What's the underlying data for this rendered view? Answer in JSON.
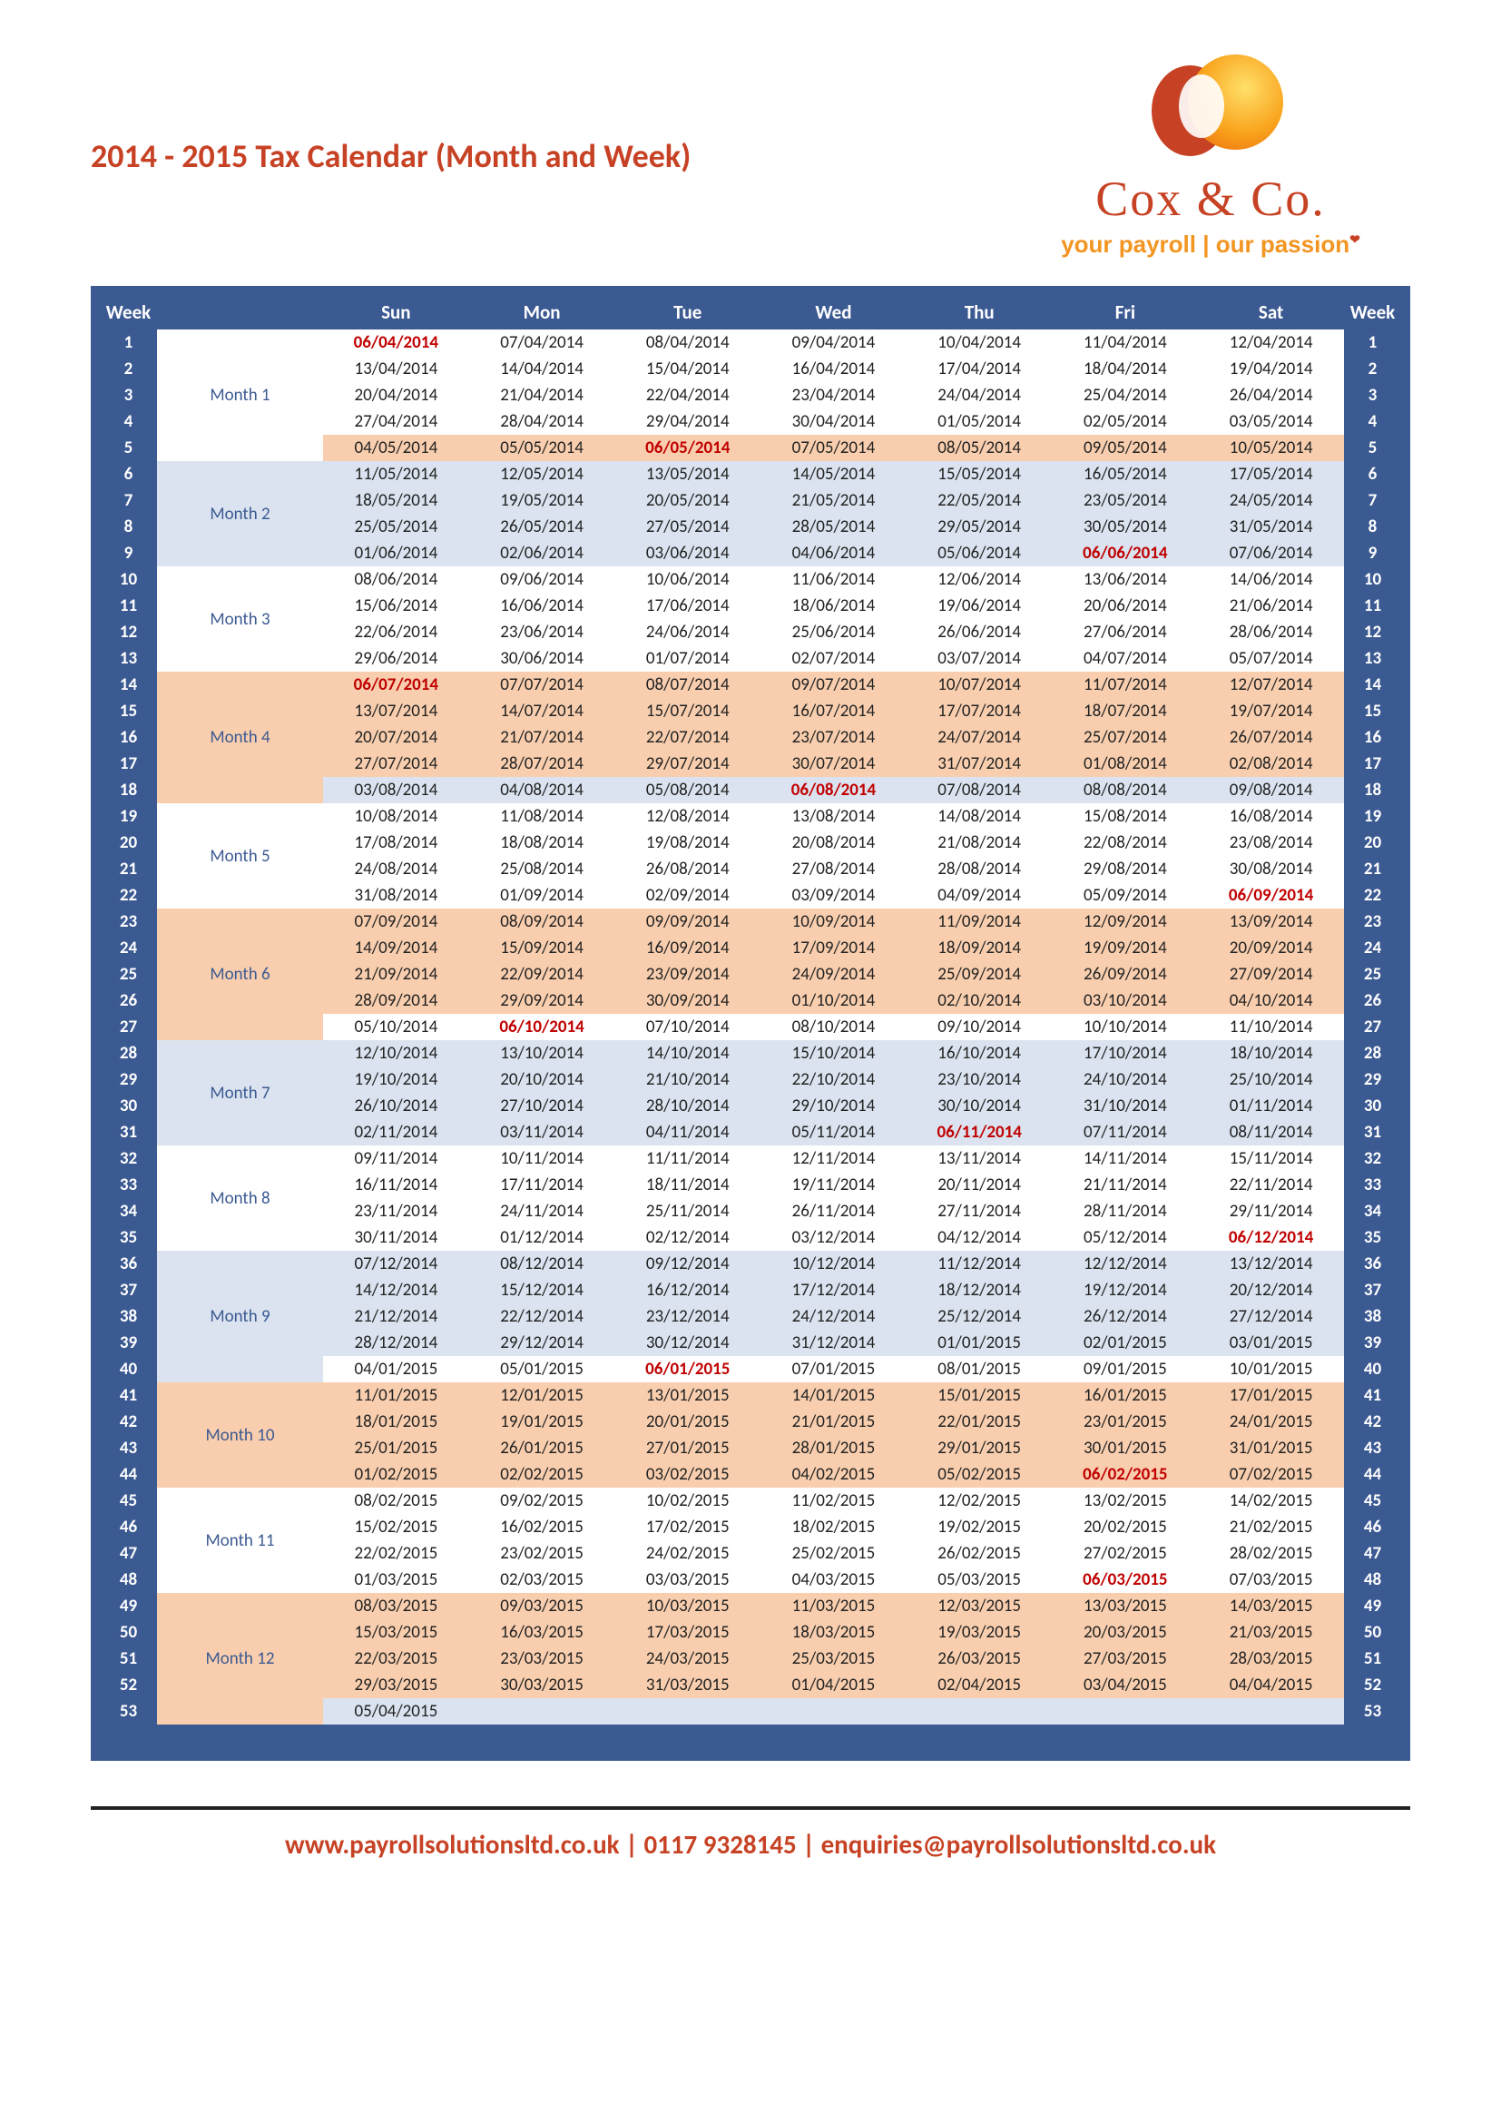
{
  "title": "2014 - 2015 Tax Calendar (Month and Week)",
  "brand": {
    "name": "Cox & Co.",
    "tagline": "your payroll | our passion"
  },
  "footer": "www.payrollsolutionsltd.co.uk | 0117 9328145 | enquiries@payrollsolutionsltd.co.uk",
  "headers": {
    "week": "Week",
    "sun": "Sun",
    "mon": "Mon",
    "tue": "Tue",
    "wed": "Wed",
    "thu": "Thu",
    "fri": "Fri",
    "sat": "Sat"
  },
  "months": [
    {
      "label": "Month 1",
      "band": "white",
      "weeks": [
        {
          "n": 1,
          "d": [
            "06/04/2014",
            "07/04/2014",
            "08/04/2014",
            "09/04/2014",
            "10/04/2014",
            "11/04/2014",
            "12/04/2014"
          ],
          "red": [
            0
          ]
        },
        {
          "n": 2,
          "d": [
            "13/04/2014",
            "14/04/2014",
            "15/04/2014",
            "16/04/2014",
            "17/04/2014",
            "18/04/2014",
            "19/04/2014"
          ]
        },
        {
          "n": 3,
          "d": [
            "20/04/2014",
            "21/04/2014",
            "22/04/2014",
            "23/04/2014",
            "24/04/2014",
            "25/04/2014",
            "26/04/2014"
          ]
        },
        {
          "n": 4,
          "d": [
            "27/04/2014",
            "28/04/2014",
            "29/04/2014",
            "30/04/2014",
            "01/05/2014",
            "02/05/2014",
            "03/05/2014"
          ]
        },
        {
          "n": 5,
          "d": [
            "04/05/2014",
            "05/05/2014",
            "06/05/2014",
            "07/05/2014",
            "08/05/2014",
            "09/05/2014",
            "10/05/2014"
          ],
          "red": [
            2
          ],
          "band": "peach"
        }
      ]
    },
    {
      "label": "Month 2",
      "band": "blue",
      "weeks": [
        {
          "n": 6,
          "d": [
            "11/05/2014",
            "12/05/2014",
            "13/05/2014",
            "14/05/2014",
            "15/05/2014",
            "16/05/2014",
            "17/05/2014"
          ]
        },
        {
          "n": 7,
          "d": [
            "18/05/2014",
            "19/05/2014",
            "20/05/2014",
            "21/05/2014",
            "22/05/2014",
            "23/05/2014",
            "24/05/2014"
          ]
        },
        {
          "n": 8,
          "d": [
            "25/05/2014",
            "26/05/2014",
            "27/05/2014",
            "28/05/2014",
            "29/05/2014",
            "30/05/2014",
            "31/05/2014"
          ]
        },
        {
          "n": 9,
          "d": [
            "01/06/2014",
            "02/06/2014",
            "03/06/2014",
            "04/06/2014",
            "05/06/2014",
            "06/06/2014",
            "07/06/2014"
          ],
          "red": [
            5
          ]
        }
      ]
    },
    {
      "label": "Month 3",
      "band": "white",
      "weeks": [
        {
          "n": 10,
          "d": [
            "08/06/2014",
            "09/06/2014",
            "10/06/2014",
            "11/06/2014",
            "12/06/2014",
            "13/06/2014",
            "14/06/2014"
          ]
        },
        {
          "n": 11,
          "d": [
            "15/06/2014",
            "16/06/2014",
            "17/06/2014",
            "18/06/2014",
            "19/06/2014",
            "20/06/2014",
            "21/06/2014"
          ]
        },
        {
          "n": 12,
          "d": [
            "22/06/2014",
            "23/06/2014",
            "24/06/2014",
            "25/06/2014",
            "26/06/2014",
            "27/06/2014",
            "28/06/2014"
          ]
        },
        {
          "n": 13,
          "d": [
            "29/06/2014",
            "30/06/2014",
            "01/07/2014",
            "02/07/2014",
            "03/07/2014",
            "04/07/2014",
            "05/07/2014"
          ]
        }
      ]
    },
    {
      "label": "Month 4",
      "band": "peach",
      "weeks": [
        {
          "n": 14,
          "d": [
            "06/07/2014",
            "07/07/2014",
            "08/07/2014",
            "09/07/2014",
            "10/07/2014",
            "11/07/2014",
            "12/07/2014"
          ],
          "red": [
            0
          ]
        },
        {
          "n": 15,
          "d": [
            "13/07/2014",
            "14/07/2014",
            "15/07/2014",
            "16/07/2014",
            "17/07/2014",
            "18/07/2014",
            "19/07/2014"
          ]
        },
        {
          "n": 16,
          "d": [
            "20/07/2014",
            "21/07/2014",
            "22/07/2014",
            "23/07/2014",
            "24/07/2014",
            "25/07/2014",
            "26/07/2014"
          ]
        },
        {
          "n": 17,
          "d": [
            "27/07/2014",
            "28/07/2014",
            "29/07/2014",
            "30/07/2014",
            "31/07/2014",
            "01/08/2014",
            "02/08/2014"
          ]
        },
        {
          "n": 18,
          "d": [
            "03/08/2014",
            "04/08/2014",
            "05/08/2014",
            "06/08/2014",
            "07/08/2014",
            "08/08/2014",
            "09/08/2014"
          ],
          "red": [
            3
          ],
          "band": "blue"
        }
      ]
    },
    {
      "label": "Month 5",
      "band": "white",
      "weeks": [
        {
          "n": 19,
          "d": [
            "10/08/2014",
            "11/08/2014",
            "12/08/2014",
            "13/08/2014",
            "14/08/2014",
            "15/08/2014",
            "16/08/2014"
          ]
        },
        {
          "n": 20,
          "d": [
            "17/08/2014",
            "18/08/2014",
            "19/08/2014",
            "20/08/2014",
            "21/08/2014",
            "22/08/2014",
            "23/08/2014"
          ]
        },
        {
          "n": 21,
          "d": [
            "24/08/2014",
            "25/08/2014",
            "26/08/2014",
            "27/08/2014",
            "28/08/2014",
            "29/08/2014",
            "30/08/2014"
          ]
        },
        {
          "n": 22,
          "d": [
            "31/08/2014",
            "01/09/2014",
            "02/09/2014",
            "03/09/2014",
            "04/09/2014",
            "05/09/2014",
            "06/09/2014"
          ],
          "red": [
            6
          ]
        }
      ]
    },
    {
      "label": "Month 6",
      "band": "peach",
      "weeks": [
        {
          "n": 23,
          "d": [
            "07/09/2014",
            "08/09/2014",
            "09/09/2014",
            "10/09/2014",
            "11/09/2014",
            "12/09/2014",
            "13/09/2014"
          ]
        },
        {
          "n": 24,
          "d": [
            "14/09/2014",
            "15/09/2014",
            "16/09/2014",
            "17/09/2014",
            "18/09/2014",
            "19/09/2014",
            "20/09/2014"
          ]
        },
        {
          "n": 25,
          "d": [
            "21/09/2014",
            "22/09/2014",
            "23/09/2014",
            "24/09/2014",
            "25/09/2014",
            "26/09/2014",
            "27/09/2014"
          ]
        },
        {
          "n": 26,
          "d": [
            "28/09/2014",
            "29/09/2014",
            "30/09/2014",
            "01/10/2014",
            "02/10/2014",
            "03/10/2014",
            "04/10/2014"
          ]
        },
        {
          "n": 27,
          "d": [
            "05/10/2014",
            "06/10/2014",
            "07/10/2014",
            "08/10/2014",
            "09/10/2014",
            "10/10/2014",
            "11/10/2014"
          ],
          "red": [
            1
          ],
          "band": "white"
        }
      ]
    },
    {
      "label": "Month 7",
      "band": "blue",
      "weeks": [
        {
          "n": 28,
          "d": [
            "12/10/2014",
            "13/10/2014",
            "14/10/2014",
            "15/10/2014",
            "16/10/2014",
            "17/10/2014",
            "18/10/2014"
          ]
        },
        {
          "n": 29,
          "d": [
            "19/10/2014",
            "20/10/2014",
            "21/10/2014",
            "22/10/2014",
            "23/10/2014",
            "24/10/2014",
            "25/10/2014"
          ]
        },
        {
          "n": 30,
          "d": [
            "26/10/2014",
            "27/10/2014",
            "28/10/2014",
            "29/10/2014",
            "30/10/2014",
            "31/10/2014",
            "01/11/2014"
          ]
        },
        {
          "n": 31,
          "d": [
            "02/11/2014",
            "03/11/2014",
            "04/11/2014",
            "05/11/2014",
            "06/11/2014",
            "07/11/2014",
            "08/11/2014"
          ],
          "red": [
            4
          ]
        }
      ]
    },
    {
      "label": "Month 8",
      "band": "white",
      "weeks": [
        {
          "n": 32,
          "d": [
            "09/11/2014",
            "10/11/2014",
            "11/11/2014",
            "12/11/2014",
            "13/11/2014",
            "14/11/2014",
            "15/11/2014"
          ]
        },
        {
          "n": 33,
          "d": [
            "16/11/2014",
            "17/11/2014",
            "18/11/2014",
            "19/11/2014",
            "20/11/2014",
            "21/11/2014",
            "22/11/2014"
          ]
        },
        {
          "n": 34,
          "d": [
            "23/11/2014",
            "24/11/2014",
            "25/11/2014",
            "26/11/2014",
            "27/11/2014",
            "28/11/2014",
            "29/11/2014"
          ]
        },
        {
          "n": 35,
          "d": [
            "30/11/2014",
            "01/12/2014",
            "02/12/2014",
            "03/12/2014",
            "04/12/2014",
            "05/12/2014",
            "06/12/2014"
          ],
          "red": [
            6
          ]
        }
      ]
    },
    {
      "label": "Month 9",
      "band": "blue",
      "weeks": [
        {
          "n": 36,
          "d": [
            "07/12/2014",
            "08/12/2014",
            "09/12/2014",
            "10/12/2014",
            "11/12/2014",
            "12/12/2014",
            "13/12/2014"
          ]
        },
        {
          "n": 37,
          "d": [
            "14/12/2014",
            "15/12/2014",
            "16/12/2014",
            "17/12/2014",
            "18/12/2014",
            "19/12/2014",
            "20/12/2014"
          ]
        },
        {
          "n": 38,
          "d": [
            "21/12/2014",
            "22/12/2014",
            "23/12/2014",
            "24/12/2014",
            "25/12/2014",
            "26/12/2014",
            "27/12/2014"
          ]
        },
        {
          "n": 39,
          "d": [
            "28/12/2014",
            "29/12/2014",
            "30/12/2014",
            "31/12/2014",
            "01/01/2015",
            "02/01/2015",
            "03/01/2015"
          ]
        },
        {
          "n": 40,
          "d": [
            "04/01/2015",
            "05/01/2015",
            "06/01/2015",
            "07/01/2015",
            "08/01/2015",
            "09/01/2015",
            "10/01/2015"
          ],
          "red": [
            2
          ],
          "band": "white"
        }
      ]
    },
    {
      "label": "Month 10",
      "band": "peach",
      "weeks": [
        {
          "n": 41,
          "d": [
            "11/01/2015",
            "12/01/2015",
            "13/01/2015",
            "14/01/2015",
            "15/01/2015",
            "16/01/2015",
            "17/01/2015"
          ]
        },
        {
          "n": 42,
          "d": [
            "18/01/2015",
            "19/01/2015",
            "20/01/2015",
            "21/01/2015",
            "22/01/2015",
            "23/01/2015",
            "24/01/2015"
          ]
        },
        {
          "n": 43,
          "d": [
            "25/01/2015",
            "26/01/2015",
            "27/01/2015",
            "28/01/2015",
            "29/01/2015",
            "30/01/2015",
            "31/01/2015"
          ]
        },
        {
          "n": 44,
          "d": [
            "01/02/2015",
            "02/02/2015",
            "03/02/2015",
            "04/02/2015",
            "05/02/2015",
            "06/02/2015",
            "07/02/2015"
          ],
          "red": [
            5
          ]
        }
      ]
    },
    {
      "label": "Month 11",
      "band": "white",
      "weeks": [
        {
          "n": 45,
          "d": [
            "08/02/2015",
            "09/02/2015",
            "10/02/2015",
            "11/02/2015",
            "12/02/2015",
            "13/02/2015",
            "14/02/2015"
          ]
        },
        {
          "n": 46,
          "d": [
            "15/02/2015",
            "16/02/2015",
            "17/02/2015",
            "18/02/2015",
            "19/02/2015",
            "20/02/2015",
            "21/02/2015"
          ]
        },
        {
          "n": 47,
          "d": [
            "22/02/2015",
            "23/02/2015",
            "24/02/2015",
            "25/02/2015",
            "26/02/2015",
            "27/02/2015",
            "28/02/2015"
          ]
        },
        {
          "n": 48,
          "d": [
            "01/03/2015",
            "02/03/2015",
            "03/03/2015",
            "04/03/2015",
            "05/03/2015",
            "06/03/2015",
            "07/03/2015"
          ],
          "red": [
            5
          ]
        }
      ]
    },
    {
      "label": "Month 12",
      "band": "peach",
      "weeks": [
        {
          "n": 49,
          "d": [
            "08/03/2015",
            "09/03/2015",
            "10/03/2015",
            "11/03/2015",
            "12/03/2015",
            "13/03/2015",
            "14/03/2015"
          ]
        },
        {
          "n": 50,
          "d": [
            "15/03/2015",
            "16/03/2015",
            "17/03/2015",
            "18/03/2015",
            "19/03/2015",
            "20/03/2015",
            "21/03/2015"
          ]
        },
        {
          "n": 51,
          "d": [
            "22/03/2015",
            "23/03/2015",
            "24/03/2015",
            "25/03/2015",
            "26/03/2015",
            "27/03/2015",
            "28/03/2015"
          ]
        },
        {
          "n": 52,
          "d": [
            "29/03/2015",
            "30/03/2015",
            "31/03/2015",
            "01/04/2015",
            "02/04/2015",
            "03/04/2015",
            "04/04/2015"
          ]
        },
        {
          "n": 53,
          "d": [
            "05/04/2015",
            "",
            "",
            "",
            "",
            "",
            ""
          ],
          "band": "blue"
        }
      ]
    }
  ]
}
